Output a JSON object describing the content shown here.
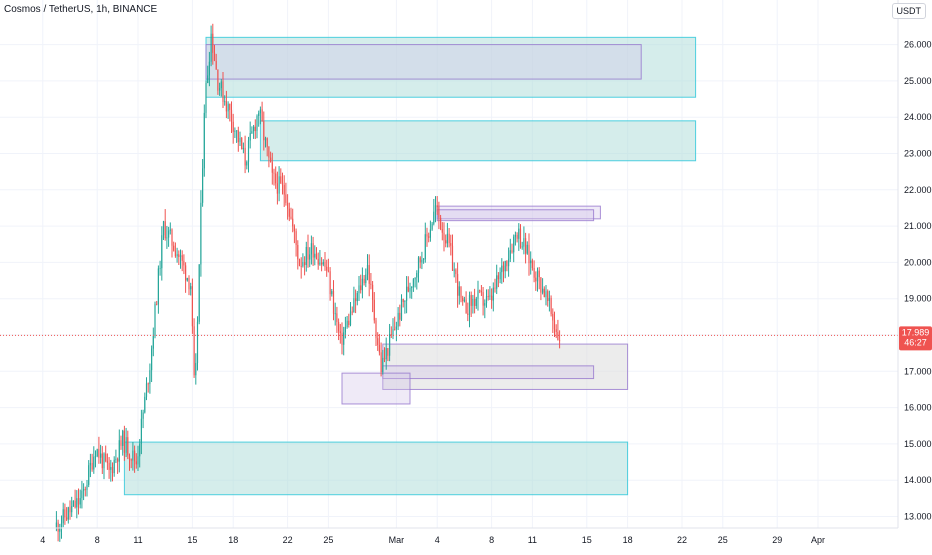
{
  "header": {
    "title": "Cosmos / TetherUS, 1h, BINANCE",
    "currency": "USDT"
  },
  "price_tag": {
    "price": "17.989",
    "countdown": "46:27"
  },
  "colors": {
    "candle_up": "#26a69a",
    "candle_down": "#ef5350",
    "zone_supply_fill": "#b2dfdb",
    "zone_supply_stroke": "#26c6da",
    "zone_purple_fill": "#d1c4e9",
    "zone_purple_stroke": "#9575cd",
    "zone_grey_fill": "#e0e0e0",
    "price_line": "#ef5350"
  },
  "chart_data": {
    "type": "candlestick",
    "title": "Cosmos / TetherUS, 1h, BINANCE",
    "y_axis": {
      "ticks": [
        "13.000",
        "14.000",
        "15.000",
        "16.000",
        "17.000",
        "18.000",
        "19.000",
        "20.000",
        "21.000",
        "22.000",
        "23.000",
        "24.000",
        "25.000",
        "26.000"
      ],
      "range": [
        12.8,
        26.8
      ]
    },
    "x_axis": {
      "ticks": [
        "4",
        "8",
        "11",
        "15",
        "18",
        "22",
        "25",
        "Mar",
        "4",
        "8",
        "11",
        "15",
        "18",
        "22",
        "25",
        "29",
        "Apr"
      ]
    },
    "current_price": 17.989,
    "price_path": [
      [
        "Feb 5",
        12.7
      ],
      [
        "Feb 7",
        13.5
      ],
      [
        "Feb 8",
        14.9
      ],
      [
        "Feb 9",
        14.2
      ],
      [
        "Feb 10",
        15.1
      ],
      [
        "Feb 11",
        14.5
      ],
      [
        "Feb 12",
        17.2
      ],
      [
        "Feb 13",
        21.0
      ],
      [
        "Feb 14",
        20.3
      ],
      [
        "Feb 15",
        19.4
      ],
      [
        "Feb 15.3",
        16.1
      ],
      [
        "Feb 16",
        24.3
      ],
      [
        "Feb 16.5",
        26.3
      ],
      [
        "Feb 17",
        25.0
      ],
      [
        "Feb 18",
        24.0
      ],
      [
        "Feb 19",
        22.8
      ],
      [
        "Feb 20",
        24.2
      ],
      [
        "Feb 21",
        22.3
      ],
      [
        "Feb 22",
        21.9
      ],
      [
        "Feb 23",
        20.0
      ],
      [
        "Feb 24",
        20.4
      ],
      [
        "Feb 25",
        19.8
      ],
      [
        "Feb 26",
        17.8
      ],
      [
        "Feb 27",
        18.8
      ],
      [
        "Feb 28",
        19.9
      ],
      [
        "Feb 29",
        17.1
      ],
      [
        "Mar 1",
        18.2
      ],
      [
        "Mar 2",
        19.3
      ],
      [
        "Mar 3",
        20.2
      ],
      [
        "Mar 4",
        21.5
      ],
      [
        "Mar 5",
        20.4
      ],
      [
        "Mar 6",
        18.7
      ],
      [
        "Mar 7",
        19.0
      ],
      [
        "Mar 8",
        18.9
      ],
      [
        "Mar 9",
        19.9
      ],
      [
        "Mar 10",
        20.9
      ],
      [
        "Mar 11",
        20.0
      ],
      [
        "Mar 12",
        19.2
      ],
      [
        "Mar 13",
        17.99
      ]
    ],
    "zones": [
      {
        "kind": "supply",
        "from": "Feb 16",
        "to": "Mar 23",
        "low": 24.55,
        "high": 26.2
      },
      {
        "kind": "purple",
        "from": "Feb 16",
        "to": "Mar 19",
        "low": 25.05,
        "high": 26.0
      },
      {
        "kind": "supply",
        "from": "Feb 20",
        "to": "Mar 23",
        "low": 22.8,
        "high": 23.9
      },
      {
        "kind": "purple",
        "from": "Mar 4",
        "to": "Mar 16",
        "low": 21.2,
        "high": 21.55
      },
      {
        "kind": "purple",
        "from": "Mar 4",
        "to": "Mar 15.5",
        "low": 21.15,
        "high": 21.45
      },
      {
        "kind": "grey",
        "from": "Feb 29",
        "to": "Mar 18",
        "low": 16.5,
        "high": 17.75
      },
      {
        "kind": "purple",
        "from": "Feb 29",
        "to": "Mar 15.5",
        "low": 16.8,
        "high": 17.15
      },
      {
        "kind": "purple",
        "from": "Feb 26",
        "to": "Mar 2",
        "low": 16.1,
        "high": 16.95
      },
      {
        "kind": "supply",
        "from": "Feb 10",
        "to": "Mar 18",
        "low": 13.6,
        "high": 15.05
      }
    ]
  }
}
